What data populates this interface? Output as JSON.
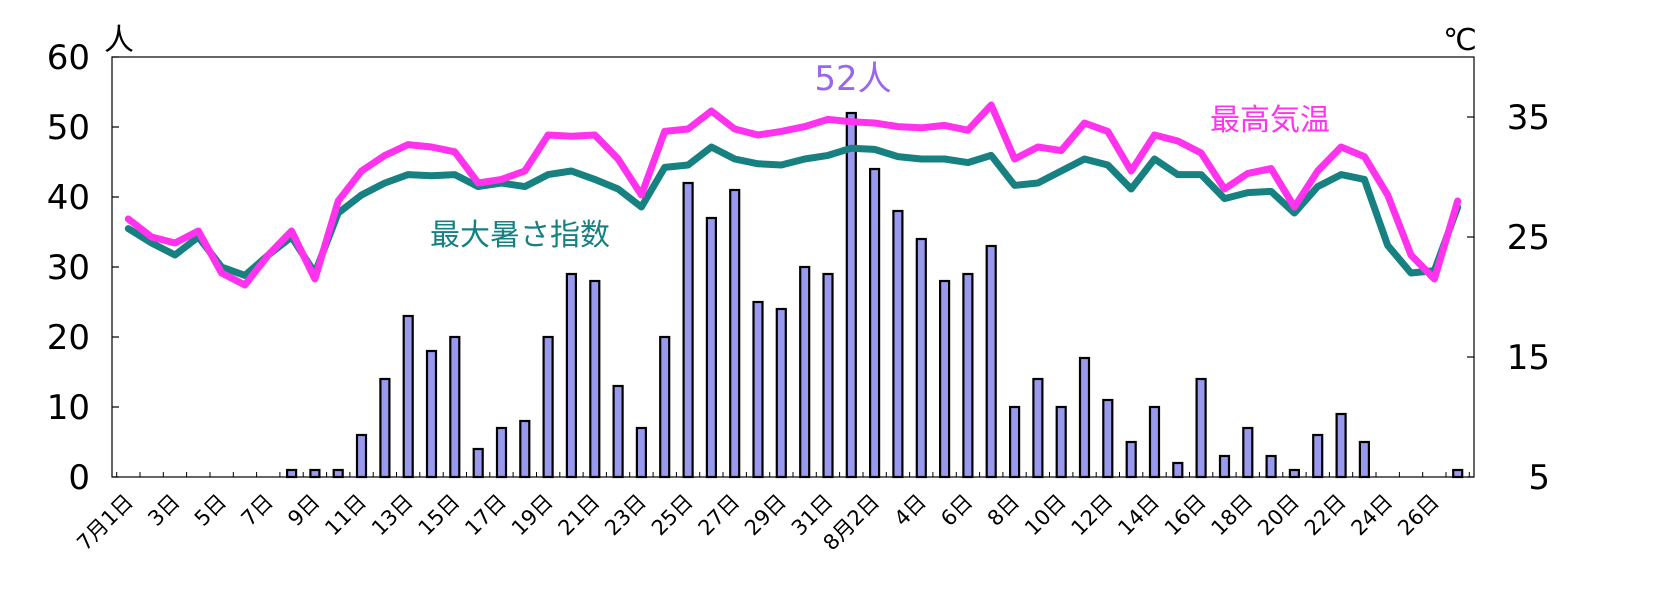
{
  "chart_data": {
    "type": "bar",
    "left_axis_unit": "人",
    "right_axis_unit": "℃",
    "y_left": {
      "min": 0,
      "max": 60,
      "ticks": [
        0,
        10,
        20,
        30,
        40,
        50,
        60
      ]
    },
    "y_right": {
      "min": 5,
      "max": 40,
      "ticks": [
        5,
        15,
        25,
        35
      ]
    },
    "x_tick_labels": [
      "7月1日",
      "3日",
      "5日",
      "7日",
      "9日",
      "11日",
      "13日",
      "15日",
      "17日",
      "19日",
      "21日",
      "23日",
      "25日",
      "27日",
      "29日",
      "31日",
      "8月2日",
      "4日",
      "6日",
      "8日",
      "10日",
      "12日",
      "14日",
      "16日",
      "18日",
      "20日",
      "22日",
      "24日",
      "26日"
    ],
    "annotations": {
      "peak_label": "52人",
      "max_temp_label": "最高気温",
      "wbgt_label": "最大暑さ指数"
    },
    "colors": {
      "bar_fill": "#9999ee",
      "bar_stroke": "#000000",
      "max_temp": "#ff33ee",
      "wbgt": "#178080",
      "peak_label": "#9966ee"
    },
    "bars": [
      0,
      0,
      0,
      0,
      0,
      0,
      0,
      1,
      1,
      1,
      6,
      14,
      23,
      18,
      20,
      4,
      7,
      8,
      20,
      29,
      28,
      13,
      7,
      20,
      42,
      37,
      41,
      25,
      24,
      30,
      29,
      52,
      44,
      38,
      34,
      28,
      29,
      33,
      10,
      14,
      10,
      17,
      11,
      5,
      10,
      2,
      14,
      3,
      7,
      3,
      1,
      6,
      9,
      5,
      0,
      0,
      0,
      1
    ],
    "series": [
      {
        "name": "最高気温",
        "values": [
          26.5,
          25,
          24.5,
          25.5,
          22,
          21,
          23.5,
          25.5,
          21.5,
          28,
          30.5,
          31.8,
          32.7,
          32.5,
          32.1,
          29.5,
          29.8,
          30.5,
          33.5,
          33.4,
          33.5,
          31.5,
          28.5,
          33.8,
          34,
          35.5,
          34,
          33.5,
          33.8,
          34.2,
          34.8,
          34.6,
          34.5,
          34.2,
          34.1,
          34.3,
          33.9,
          36,
          31.5,
          32.5,
          32.2,
          34.5,
          33.8,
          30.5,
          33.5,
          33,
          32,
          29,
          30.3,
          30.7,
          27.5,
          30.5,
          32.5,
          31.7,
          28.5,
          23.5,
          21.5,
          28
        ]
      },
      {
        "name": "最大暑さ指数",
        "values": [
          25.7,
          24.5,
          23.5,
          25,
          22.5,
          21.8,
          23.5,
          25,
          22,
          27,
          28.5,
          29.5,
          30.2,
          30.1,
          30.2,
          29.2,
          29.5,
          29.2,
          30.2,
          30.5,
          29.8,
          29,
          27.5,
          30.8,
          31,
          32.5,
          31.5,
          31.1,
          31,
          31.5,
          31.8,
          32.4,
          32.3,
          31.7,
          31.5,
          31.5,
          31.2,
          31.8,
          29.3,
          29.5,
          30.5,
          31.5,
          31,
          29,
          31.5,
          30.2,
          30.2,
          28.2,
          28.7,
          28.8,
          27,
          29.2,
          30.2,
          29.8,
          24.3,
          22,
          22.2,
          27.5
        ]
      }
    ]
  }
}
